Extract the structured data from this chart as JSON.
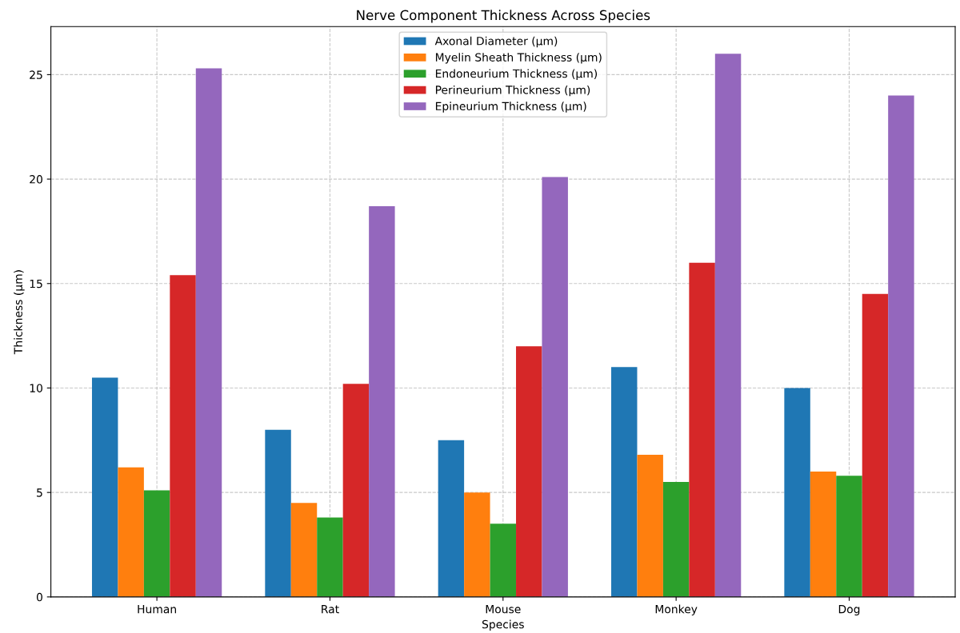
{
  "chart_data": {
    "type": "bar",
    "title": "Nerve Component Thickness Across Species",
    "xlabel": "Species",
    "ylabel": "Thickness (µm)",
    "categories": [
      "Human",
      "Rat",
      "Mouse",
      "Monkey",
      "Dog"
    ],
    "series": [
      {
        "name": "Axonal Diameter (µm)",
        "color": "#1f77b4",
        "values": [
          10.5,
          8.0,
          7.5,
          11.0,
          10.0
        ]
      },
      {
        "name": "Myelin Sheath Thickness (µm)",
        "color": "#ff7f0e",
        "values": [
          6.2,
          4.5,
          5.0,
          6.8,
          6.0
        ]
      },
      {
        "name": "Endoneurium Thickness (µm)",
        "color": "#2ca02c",
        "values": [
          5.1,
          3.8,
          3.5,
          5.5,
          5.8
        ]
      },
      {
        "name": "Perineurium Thickness (µm)",
        "color": "#d62728",
        "values": [
          15.4,
          10.2,
          12.0,
          16.0,
          14.5
        ]
      },
      {
        "name": "Epineurium Thickness (µm)",
        "color": "#9467bd",
        "values": [
          25.3,
          18.7,
          20.1,
          26.0,
          24.0
        ]
      }
    ],
    "ylim": [
      0,
      27.3
    ],
    "yticks": [
      0,
      5,
      10,
      15,
      20,
      25
    ],
    "grid": true,
    "legend": "top"
  }
}
